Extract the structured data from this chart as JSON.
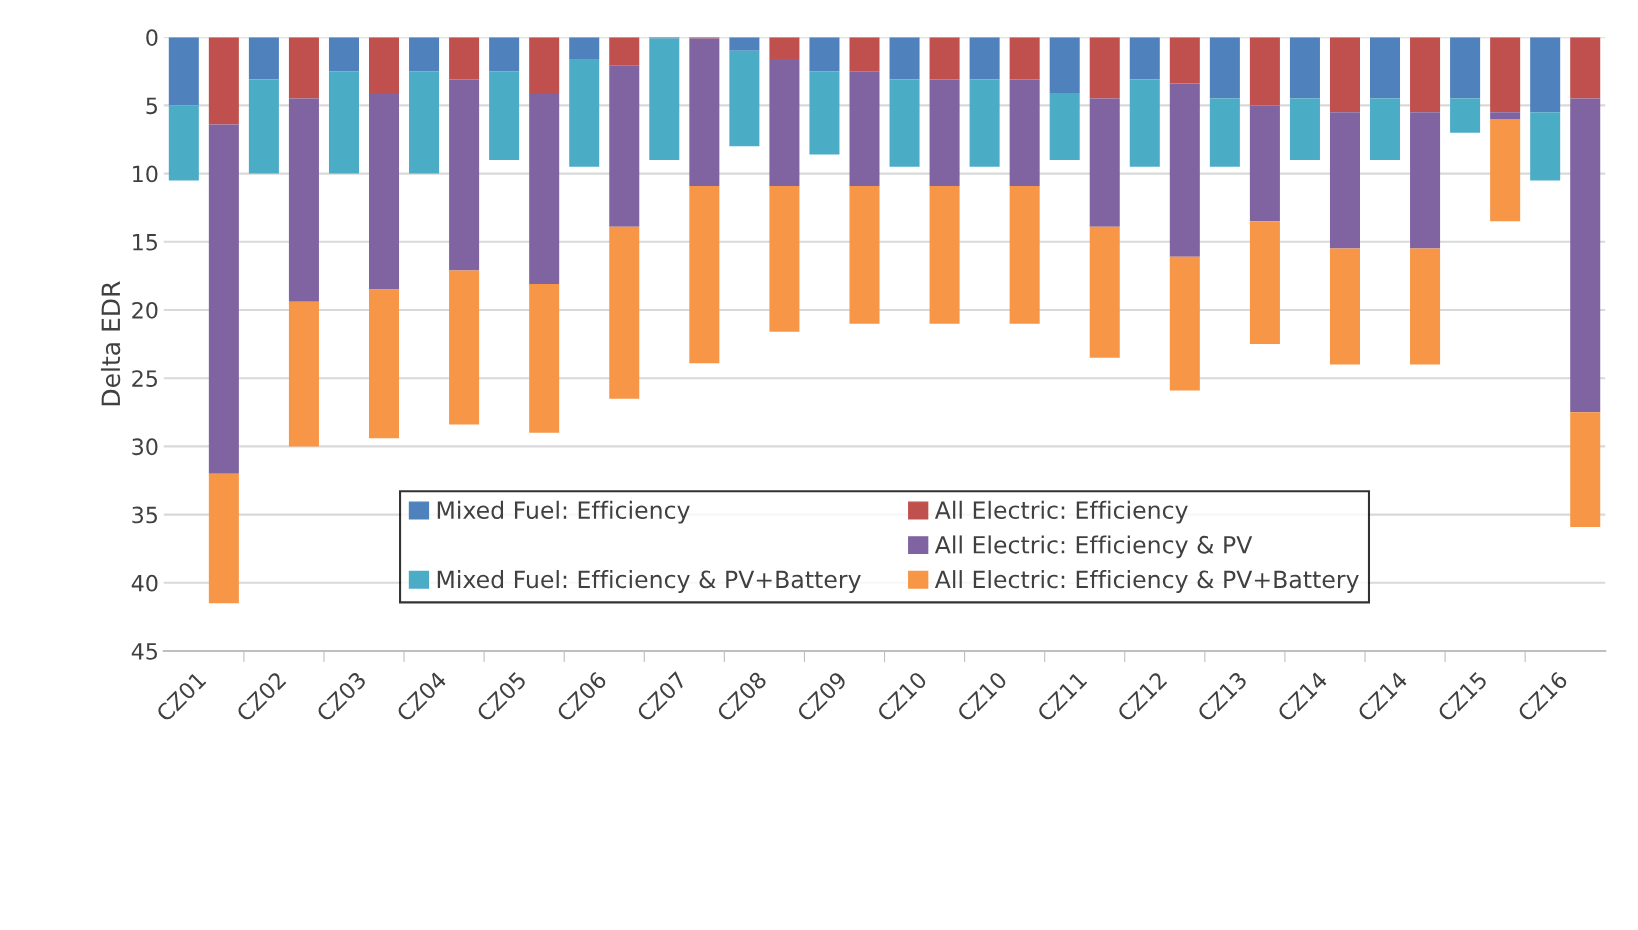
{
  "chart_data": {
    "type": "bar",
    "stacked": true,
    "ylabel": "Delta EDR",
    "categories": [
      "CZ01",
      null,
      "CZ02",
      null,
      "CZ03",
      null,
      "CZ04",
      null,
      "CZ05",
      null,
      "CZ06",
      null,
      "CZ07",
      null,
      "CZ08",
      null,
      "CZ09",
      null,
      "CZ10",
      null,
      "CZ10",
      null,
      "CZ11",
      null,
      "CZ12",
      null,
      "CZ13",
      null,
      "CZ14",
      null,
      "CZ14",
      null,
      "CZ15",
      null,
      "CZ16",
      null
    ],
    "series": [
      {
        "name": "Mixed Fuel: Efficiency",
        "color": "#4f81bd",
        "values": [
          5.0,
          null,
          3.1,
          null,
          2.5,
          null,
          2.5,
          null,
          2.5,
          null,
          1.6,
          null,
          0.1,
          null,
          1.0,
          null,
          2.5,
          null,
          3.1,
          null,
          3.1,
          null,
          4.1,
          null,
          3.1,
          null,
          4.5,
          null,
          4.5,
          null,
          4.5,
          null,
          4.5,
          null,
          5.5,
          null
        ]
      },
      {
        "name": "Mixed Fuel: Efficiency & PV+Battery",
        "color": "#4bacc6",
        "values": [
          5.5,
          null,
          6.9,
          null,
          7.5,
          null,
          7.5,
          null,
          6.5,
          null,
          7.9,
          null,
          8.9,
          null,
          7.0,
          null,
          6.1,
          null,
          6.4,
          null,
          6.4,
          null,
          4.9,
          null,
          6.4,
          null,
          5.0,
          null,
          4.5,
          null,
          4.5,
          null,
          2.5,
          null,
          5.0,
          null
        ]
      },
      {
        "name": "All Electric: Efficiency",
        "color": "#c0504d",
        "values": [
          null,
          6.4,
          null,
          4.5,
          null,
          4.1,
          null,
          3.1,
          null,
          4.1,
          null,
          2.1,
          null,
          0.1,
          null,
          1.6,
          null,
          2.5,
          null,
          3.1,
          null,
          3.1,
          null,
          4.5,
          null,
          3.4,
          null,
          5.0,
          null,
          5.5,
          null,
          5.5,
          null,
          5.5,
          null,
          4.5
        ]
      },
      {
        "name": "All Electric: Efficiency & PV",
        "color": "#8064a2",
        "values": [
          null,
          25.6,
          null,
          14.9,
          null,
          14.4,
          null,
          14.0,
          null,
          14.0,
          null,
          11.8,
          null,
          10.8,
          null,
          9.3,
          null,
          8.4,
          null,
          7.8,
          null,
          7.8,
          null,
          9.4,
          null,
          12.7,
          null,
          8.5,
          null,
          10.0,
          null,
          10.0,
          null,
          0.5,
          null,
          23.0
        ]
      },
      {
        "name": "All Electric: Efficiency & PV+Battery",
        "color": "#f79646",
        "values": [
          null,
          9.5,
          null,
          10.6,
          null,
          10.9,
          null,
          11.3,
          null,
          10.9,
          null,
          12.6,
          null,
          13.0,
          null,
          10.7,
          null,
          10.1,
          null,
          10.1,
          null,
          10.1,
          null,
          9.6,
          null,
          9.8,
          null,
          9.0,
          null,
          8.5,
          null,
          8.5,
          null,
          7.5,
          null,
          8.4
        ]
      }
    ],
    "ylim": [
      45,
      0
    ],
    "yticks": [
      0,
      5,
      10,
      15,
      20,
      25,
      30,
      35,
      40,
      45
    ],
    "grid": "y",
    "legend": "bottom"
  }
}
